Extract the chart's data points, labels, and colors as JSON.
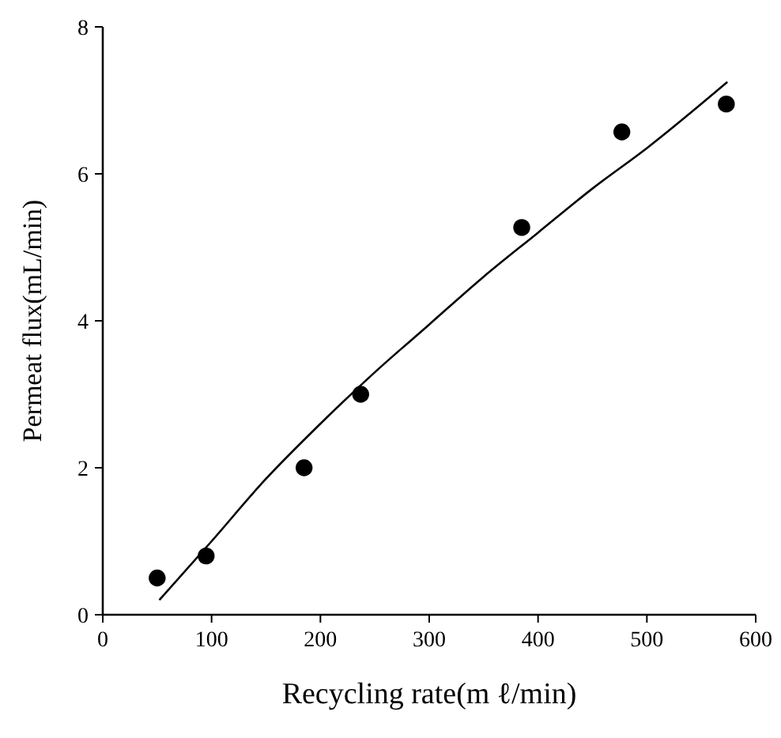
{
  "chart_data": {
    "type": "scatter",
    "xlabel": "Recycling rate(m ℓ/min)",
    "ylabel": "Permeat flux(mL/min)",
    "xlim": [
      0,
      600
    ],
    "ylim": [
      0,
      8
    ],
    "xticks": [
      0,
      100,
      200,
      300,
      400,
      500,
      600
    ],
    "yticks": [
      0,
      2,
      4,
      6,
      8
    ],
    "marker": "circle",
    "grid": false,
    "series": [
      {
        "color": "#000000",
        "x": [
          50,
          95,
          185,
          237,
          385,
          477,
          573
        ],
        "values": [
          0.5,
          0.8,
          2.0,
          3.0,
          5.27,
          6.57,
          6.95
        ]
      },
      {
        "type": "line",
        "color": "#000000",
        "marker": "none",
        "x": [
          52,
          100,
          150,
          200,
          250,
          300,
          350,
          400,
          450,
          500,
          574
        ],
        "values": [
          0.2,
          1.0,
          1.85,
          2.6,
          3.3,
          3.95,
          4.6,
          5.2,
          5.8,
          6.35,
          7.25
        ]
      }
    ]
  }
}
